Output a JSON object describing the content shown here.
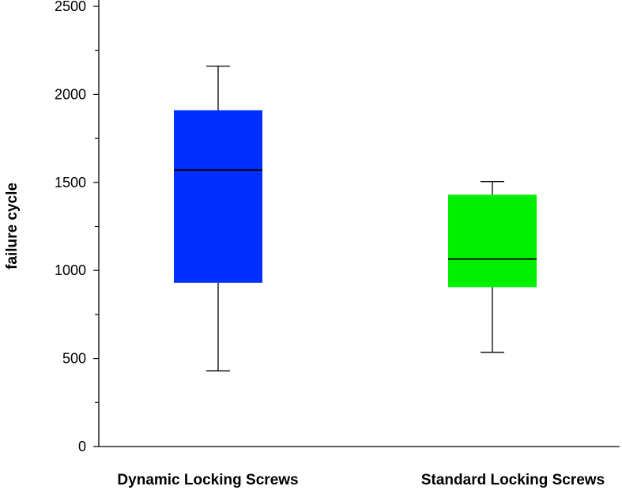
{
  "chart_data": {
    "type": "boxplot",
    "title": "",
    "xlabel": "",
    "ylabel": "failure cycle",
    "ylim": [
      0,
      2500
    ],
    "yticks": [
      0,
      500,
      1000,
      1500,
      2000,
      2500
    ],
    "ytick_labels": [
      "0",
      "500",
      "1000",
      "1500",
      "2000",
      "2500"
    ],
    "y_minor_step": 250,
    "categories": [
      "Dynamic Locking Screws",
      "Standard Locking Screws"
    ],
    "series": [
      {
        "name": "Dynamic Locking Screws",
        "color": "#0030ff",
        "min": 430,
        "q1": 930,
        "median": 1570,
        "q3": 1910,
        "max": 2160
      },
      {
        "name": "Standard Locking Screws",
        "color": "#00f000",
        "min": 535,
        "q1": 905,
        "median": 1065,
        "q3": 1430,
        "max": 1505
      }
    ]
  }
}
